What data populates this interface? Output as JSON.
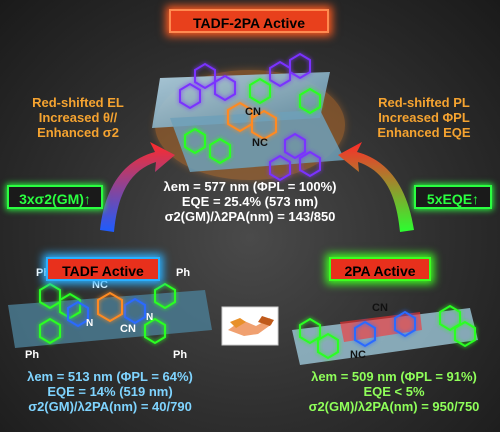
{
  "title": "TADF-2PA Active",
  "left_effects": [
    "Red-shifted EL",
    "Increased θ//",
    "Enhanced σ2"
  ],
  "right_effects": [
    "Red-shifted PL",
    "Increased ΦPL",
    "Enhanced EQE"
  ],
  "left_arrow_badge": "3xσ2(GM)↑",
  "right_arrow_badge": "5xEQE↑",
  "center_stats": [
    "λem = 577 nm (ΦPL = 100%)",
    "EQE = 25.4% (573 nm)",
    "σ2(GM)/λ2PA(nm) = 143/850"
  ],
  "tadf_label": "TADF Active",
  "tadf_stats": [
    "λem = 513 nm (ΦPL = 64%)",
    "EQE = 14% (519 nm)",
    "σ2(GM)/λ2PA(nm) = 40/790"
  ],
  "twopa_label": "2PA Active",
  "twopa_stats": [
    "λem = 509 nm (ΦPL = 91%)",
    "EQE < 5%",
    "σ2(GM)/λ2PA(nm) = 950/750"
  ],
  "molecule_labels": {
    "cn": "CN",
    "nc": "NC",
    "ph": "Ph",
    "n": "N"
  },
  "colors": {
    "orange": "#f5a330",
    "title_bg": "#e8401c",
    "tadf_bg": "#e8301c",
    "blue_glow": "#2ab0ff",
    "green_glow": "#3cff20"
  },
  "icons": [
    "handshake-icon",
    "curved-arrow-left-icon",
    "curved-arrow-right-icon"
  ]
}
